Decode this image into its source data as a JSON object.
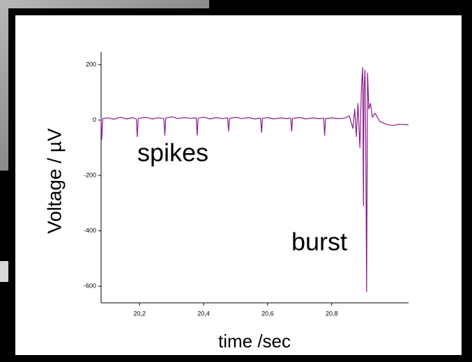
{
  "chart_data": {
    "type": "line",
    "ylabel": "Voltage / µV",
    "xlabel": "time /sec",
    "annotations": [
      "spikes",
      "burst"
    ],
    "color": "#8a1a8a",
    "xlim": [
      20.08,
      21.04
    ],
    "ylim": [
      -660,
      245
    ],
    "xticks": [
      {
        "value": 20.2,
        "label": "20,2"
      },
      {
        "value": 20.4,
        "label": "20,4"
      },
      {
        "value": 20.6,
        "label": "20,6"
      },
      {
        "value": 20.8,
        "label": "20,8"
      }
    ],
    "yticks": [
      200,
      0,
      -200,
      -400,
      -600
    ],
    "x": [
      20.08,
      20.082,
      20.085,
      20.1,
      20.12,
      20.14,
      20.16,
      20.18,
      20.19,
      20.193,
      20.196,
      20.22,
      20.24,
      20.26,
      20.276,
      20.279,
      20.282,
      20.3,
      20.32,
      20.34,
      20.36,
      20.377,
      20.38,
      20.383,
      20.4,
      20.42,
      20.44,
      20.46,
      20.475,
      20.478,
      20.481,
      20.5,
      20.52,
      20.54,
      20.56,
      20.578,
      20.581,
      20.584,
      20.6,
      20.62,
      20.64,
      20.66,
      20.672,
      20.675,
      20.678,
      20.7,
      20.72,
      20.74,
      20.76,
      20.775,
      20.778,
      20.781,
      20.8,
      20.82,
      20.84,
      20.855,
      20.866,
      20.872,
      20.877,
      20.882,
      20.888,
      20.893,
      20.897,
      20.899,
      20.901,
      20.904,
      20.906,
      20.909,
      20.912,
      20.916,
      20.921,
      20.927,
      20.935,
      20.95,
      20.97,
      20.99,
      21.01,
      21.04
    ],
    "values": [
      5,
      -70,
      5,
      8,
      3,
      10,
      4,
      9,
      3,
      -60,
      6,
      10,
      4,
      8,
      5,
      -55,
      7,
      12,
      5,
      9,
      6,
      8,
      -55,
      6,
      11,
      4,
      9,
      5,
      8,
      -40,
      6,
      10,
      5,
      9,
      4,
      7,
      -45,
      6,
      9,
      4,
      8,
      5,
      7,
      -40,
      6,
      9,
      4,
      8,
      5,
      6,
      -55,
      5,
      8,
      5,
      7,
      15,
      -30,
      40,
      -60,
      60,
      -100,
      120,
      190,
      -310,
      110,
      180,
      -20,
      -620,
      170,
      40,
      60,
      10,
      25,
      -5,
      -15,
      -20,
      -15,
      -17
    ]
  }
}
